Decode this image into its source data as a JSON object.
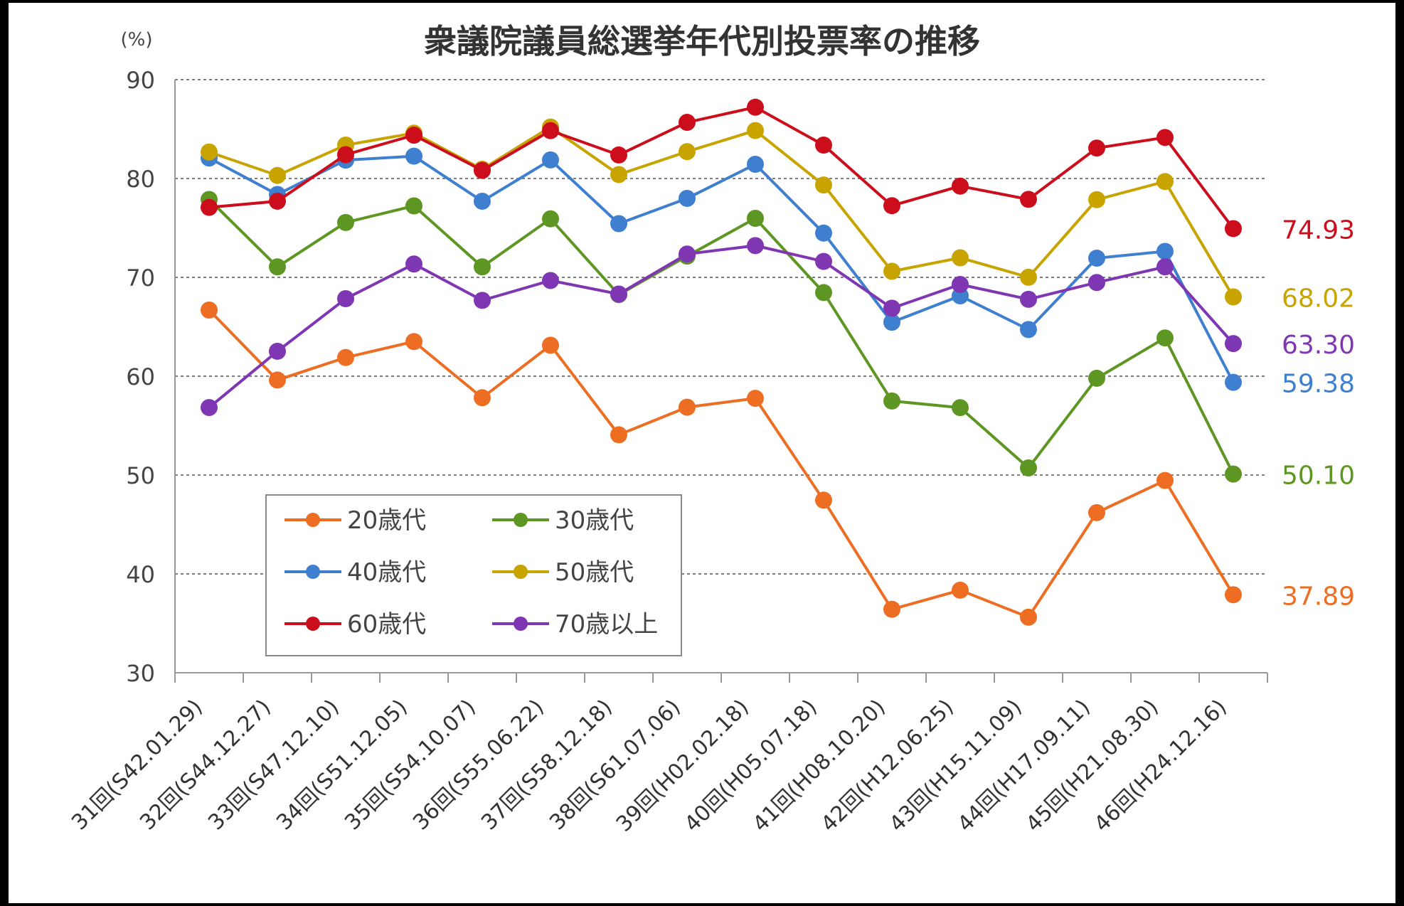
{
  "chart_data": {
    "type": "line",
    "title": "衆議院議員総選挙年代別投票率の推移",
    "unit_label": "(%)",
    "ylim": [
      30,
      90
    ],
    "yticks": [
      30,
      40,
      50,
      60,
      70,
      80,
      90
    ],
    "grid": true,
    "legend_position": "lower-left",
    "categories": [
      "31回(S42.01.29)",
      "32回(S44.12.27)",
      "33回(S47.12.10)",
      "34回(S51.12.05)",
      "35回(S54.10.07)",
      "36回(S55.06.22)",
      "37回(S58.12.18)",
      "38回(S61.07.06)",
      "39回(H02.02.18)",
      "40回(H05.07.18)",
      "41回(H08.10.20)",
      "42回(H12.06.25)",
      "43回(H15.11.09)",
      "44回(H17.09.11)",
      "45回(H21.08.30)",
      "46回(H24.12.16)"
    ],
    "series": [
      {
        "name": "20歳代",
        "color": "#ed6d22",
        "values": [
          66.69,
          59.61,
          61.89,
          63.5,
          57.82,
          63.13,
          54.07,
          56.86,
          57.76,
          47.46,
          36.42,
          38.35,
          35.62,
          46.2,
          49.45,
          37.89
        ],
        "end_label": "37.89"
      },
      {
        "name": "30歳代",
        "color": "#5e9623",
        "values": [
          77.88,
          71.06,
          75.55,
          77.23,
          71.06,
          75.92,
          68.25,
          72.15,
          75.97,
          68.46,
          57.49,
          56.82,
          50.72,
          59.79,
          63.87,
          50.1
        ],
        "end_label": "50.10"
      },
      {
        "name": "40歳代",
        "color": "#3f7fcf",
        "values": [
          82.07,
          78.38,
          81.86,
          82.26,
          77.7,
          81.88,
          75.43,
          77.99,
          81.44,
          74.48,
          65.46,
          68.13,
          64.72,
          71.94,
          72.63,
          59.38
        ],
        "end_label": "59.38"
      },
      {
        "name": "50歳代",
        "color": "#c8a400",
        "values": [
          82.68,
          80.31,
          83.38,
          84.59,
          80.94,
          85.21,
          80.4,
          82.72,
          84.85,
          79.34,
          70.61,
          71.98,
          70.01,
          77.86,
          79.69,
          68.02
        ],
        "end_label": "68.02"
      },
      {
        "name": "60歳代",
        "color": "#cc0e1c",
        "values": [
          77.08,
          77.7,
          82.41,
          84.38,
          80.82,
          84.84,
          82.38,
          85.68,
          87.21,
          83.38,
          77.25,
          79.23,
          77.89,
          83.08,
          84.15,
          74.93
        ],
        "end_label": "74.93"
      },
      {
        "name": "70歳以上",
        "color": "#7f36b2",
        "values": [
          56.83,
          62.52,
          67.84,
          71.35,
          67.67,
          69.68,
          68.31,
          72.36,
          73.21,
          71.61,
          66.88,
          69.28,
          67.78,
          69.48,
          71.06,
          63.3
        ],
        "end_label": "63.30"
      }
    ]
  }
}
